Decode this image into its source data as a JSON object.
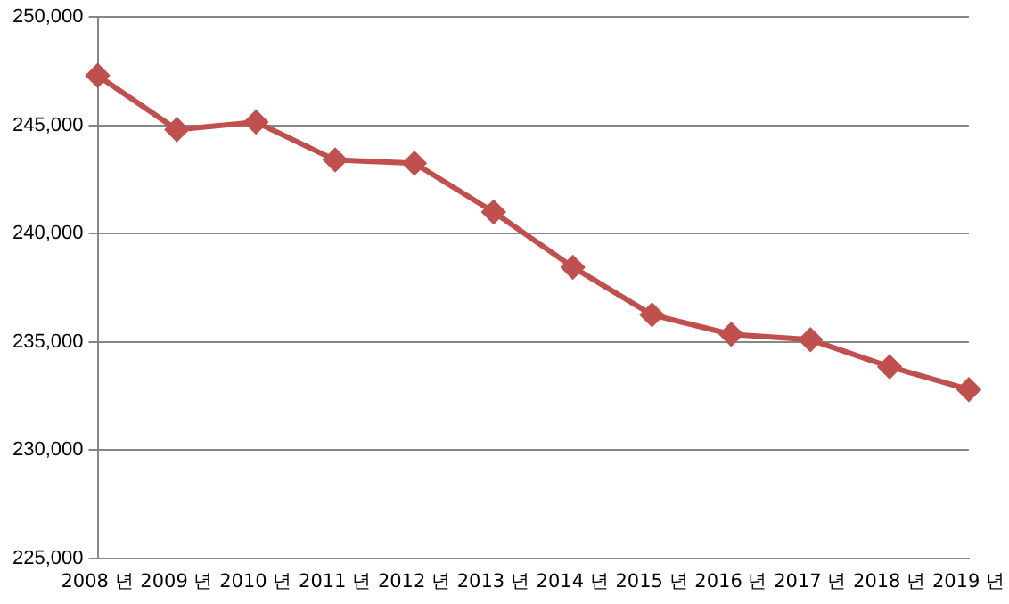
{
  "chart_data": {
    "type": "line",
    "categories": [
      "2008 년",
      "2009 년",
      "2010 년",
      "2011 년",
      "2012 년",
      "2013 년",
      "2014 년",
      "2015 년",
      "2016 년",
      "2017 년",
      "2018 년",
      "2019 년"
    ],
    "series": [
      {
        "color": "#c0504d",
        "values": [
          247300,
          244800,
          245150,
          243400,
          243250,
          241000,
          238450,
          236250,
          235350,
          235100,
          233850,
          232800
        ]
      }
    ],
    "ylim": [
      225000,
      250000
    ],
    "yticks": [
      {
        "value": 225000,
        "label": "225,000"
      },
      {
        "value": 230000,
        "label": "230,000"
      },
      {
        "value": 235000,
        "label": "235,000"
      },
      {
        "value": 240000,
        "label": "240,000"
      },
      {
        "value": 245000,
        "label": "245,000"
      },
      {
        "value": 250000,
        "label": "250,000"
      }
    ],
    "grid": "y",
    "legend": false,
    "marker": "diamond",
    "line_style": "solid"
  }
}
